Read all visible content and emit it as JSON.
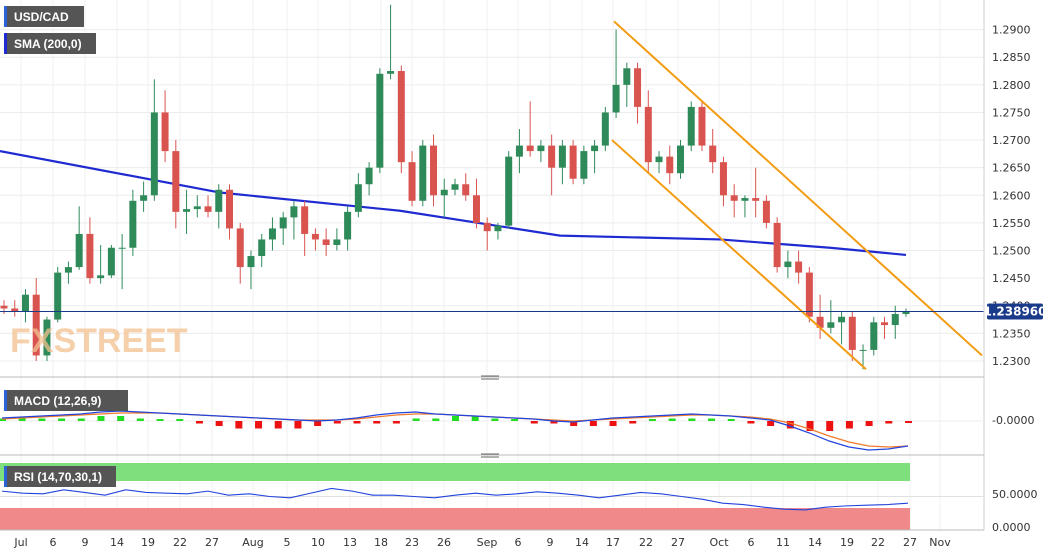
{
  "chart_data": [
    {
      "type": "candlestick",
      "symbol": "USD/CAD",
      "indicator": "SMA (200,0)",
      "watermark": "FXSTREET",
      "last_price": "1.238960",
      "last_price_value": 1.23896,
      "ylim": [
        1.228,
        1.295
      ],
      "y_ticks": [
        "1.2300",
        "1.2350",
        "1.2400",
        "1.2450",
        "1.2500",
        "1.2550",
        "1.2600",
        "1.2650",
        "1.2700",
        "1.2750",
        "1.2800",
        "1.2850",
        "1.2900"
      ],
      "x_ticks": [
        "Jul",
        "6",
        "9",
        "14",
        "19",
        "22",
        "27",
        "Aug",
        "5",
        "10",
        "13",
        "18",
        "23",
        "26",
        "Sep",
        "6",
        "9",
        "14",
        "17",
        "22",
        "27",
        "Oct",
        "6",
        "11",
        "14",
        "19",
        "22",
        "27",
        "Nov"
      ],
      "candles": [
        [
          1.24,
          1.241,
          1.2385,
          1.2395
        ],
        [
          1.2395,
          1.241,
          1.238,
          1.239
        ],
        [
          1.239,
          1.243,
          1.237,
          1.242
        ],
        [
          1.242,
          1.245,
          1.23,
          1.231
        ],
        [
          1.231,
          1.238,
          1.23,
          1.2375
        ],
        [
          1.2375,
          1.247,
          1.237,
          1.246
        ],
        [
          1.246,
          1.248,
          1.244,
          1.247
        ],
        [
          1.247,
          1.258,
          1.2465,
          1.253
        ],
        [
          1.253,
          1.256,
          1.244,
          1.245
        ],
        [
          1.245,
          1.251,
          1.244,
          1.2455
        ],
        [
          1.2455,
          1.251,
          1.245,
          1.2505
        ],
        [
          1.2505,
          1.253,
          1.243,
          1.2505
        ],
        [
          1.2505,
          1.261,
          1.249,
          1.259
        ],
        [
          1.259,
          1.2625,
          1.257,
          1.26
        ],
        [
          1.26,
          1.281,
          1.259,
          1.275
        ],
        [
          1.275,
          1.279,
          1.266,
          1.268
        ],
        [
          1.268,
          1.27,
          1.254,
          1.257
        ],
        [
          1.257,
          1.261,
          1.253,
          1.2575
        ],
        [
          1.2575,
          1.26,
          1.256,
          1.258
        ],
        [
          1.258,
          1.26,
          1.256,
          1.257
        ],
        [
          1.257,
          1.262,
          1.254,
          1.261
        ],
        [
          1.261,
          1.262,
          1.252,
          1.254
        ],
        [
          1.254,
          1.255,
          1.244,
          1.247
        ],
        [
          1.247,
          1.25,
          1.243,
          1.249
        ],
        [
          1.249,
          1.253,
          1.247,
          1.252
        ],
        [
          1.252,
          1.256,
          1.25,
          1.254
        ],
        [
          1.254,
          1.257,
          1.251,
          1.256
        ],
        [
          1.256,
          1.259,
          1.252,
          1.258
        ],
        [
          1.258,
          1.259,
          1.249,
          1.253
        ],
        [
          1.253,
          1.254,
          1.25,
          1.252
        ],
        [
          1.252,
          1.254,
          1.249,
          1.251
        ],
        [
          1.251,
          1.254,
          1.25,
          1.252
        ],
        [
          1.252,
          1.258,
          1.25,
          1.257
        ],
        [
          1.257,
          1.264,
          1.256,
          1.262
        ],
        [
          1.262,
          1.266,
          1.26,
          1.265
        ],
        [
          1.265,
          1.283,
          1.264,
          1.282
        ],
        [
          1.282,
          1.2945,
          1.281,
          1.2825
        ],
        [
          1.2825,
          1.2835,
          1.264,
          1.266
        ],
        [
          1.266,
          1.268,
          1.258,
          1.259
        ],
        [
          1.259,
          1.27,
          1.258,
          1.269
        ],
        [
          1.269,
          1.271,
          1.258,
          1.26
        ],
        [
          1.26,
          1.263,
          1.256,
          1.261
        ],
        [
          1.261,
          1.263,
          1.26,
          1.262
        ],
        [
          1.262,
          1.264,
          1.259,
          1.26
        ],
        [
          1.26,
          1.263,
          1.254,
          1.255
        ],
        [
          1.255,
          1.256,
          1.25,
          1.2535
        ],
        [
          1.2535,
          1.255,
          1.252,
          1.2545
        ],
        [
          1.2545,
          1.268,
          1.254,
          1.267
        ],
        [
          1.267,
          1.272,
          1.264,
          1.269
        ],
        [
          1.269,
          1.277,
          1.267,
          1.268
        ],
        [
          1.268,
          1.27,
          1.266,
          1.269
        ],
        [
          1.269,
          1.271,
          1.26,
          1.265
        ],
        [
          1.265,
          1.27,
          1.262,
          1.269
        ],
        [
          1.269,
          1.27,
          1.262,
          1.263
        ],
        [
          1.263,
          1.269,
          1.262,
          1.268
        ],
        [
          1.268,
          1.27,
          1.264,
          1.269
        ],
        [
          1.269,
          1.276,
          1.268,
          1.275
        ],
        [
          1.275,
          1.29,
          1.274,
          1.28
        ],
        [
          1.28,
          1.284,
          1.276,
          1.283
        ],
        [
          1.283,
          1.284,
          1.273,
          1.276
        ],
        [
          1.276,
          1.279,
          1.264,
          1.266
        ],
        [
          1.266,
          1.268,
          1.264,
          1.267
        ],
        [
          1.267,
          1.269,
          1.262,
          1.264
        ],
        [
          1.264,
          1.27,
          1.263,
          1.269
        ],
        [
          1.269,
          1.277,
          1.268,
          1.276
        ],
        [
          1.276,
          1.277,
          1.268,
          1.269
        ],
        [
          1.269,
          1.272,
          1.264,
          1.266
        ],
        [
          1.266,
          1.267,
          1.258,
          1.26
        ],
        [
          1.26,
          1.262,
          1.256,
          1.259
        ],
        [
          1.259,
          1.26,
          1.256,
          1.2595
        ],
        [
          1.2595,
          1.265,
          1.256,
          1.259
        ],
        [
          1.259,
          1.26,
          1.254,
          1.255
        ],
        [
          1.255,
          1.256,
          1.246,
          1.247
        ],
        [
          1.247,
          1.25,
          1.245,
          1.248
        ],
        [
          1.248,
          1.25,
          1.244,
          1.246
        ],
        [
          1.246,
          1.247,
          1.237,
          1.238
        ],
        [
          1.238,
          1.242,
          1.234,
          1.236
        ],
        [
          1.236,
          1.241,
          1.235,
          1.237
        ],
        [
          1.237,
          1.239,
          1.233,
          1.238
        ],
        [
          1.238,
          1.239,
          1.23,
          1.232
        ],
        [
          1.232,
          1.233,
          1.2285,
          1.232
        ],
        [
          1.232,
          1.238,
          1.231,
          1.237
        ],
        [
          1.237,
          1.238,
          1.234,
          1.2365
        ],
        [
          1.2365,
          1.24,
          1.234,
          1.2385
        ],
        [
          1.2385,
          1.2395,
          1.238,
          1.239
        ]
      ],
      "sma": [
        1.268,
        1.255,
        1.251,
        1.2495,
        1.2492
      ],
      "channel_upper": [
        [
          1.2915
        ],
        [
          1.231
        ]
      ],
      "channel_lower": [
        [
          1.27
        ],
        [
          1.2285
        ]
      ]
    },
    {
      "type": "line",
      "title": "MACD (12,26,9)",
      "y_ticks": [
        "-0.0000"
      ],
      "macd_series": [
        0.3,
        0.4,
        0.5,
        0.6,
        0.7,
        0.9,
        1.0,
        0.9,
        0.8,
        0.7,
        0.6,
        0.5,
        0.4,
        0.3,
        0.2,
        0.1,
        0.0,
        0.1,
        0.3,
        0.6,
        0.8,
        0.9,
        0.7,
        0.6,
        0.5,
        0.4,
        0.3,
        0.2,
        0.0,
        -0.1,
        0.1,
        0.3,
        0.4,
        0.5,
        0.6,
        0.7,
        0.6,
        0.5,
        0.3,
        0.1,
        -0.5,
        -1.2,
        -2.0,
        -2.6,
        -2.9,
        -2.8,
        -2.5
      ],
      "signal_series": [
        0.2,
        0.3,
        0.4,
        0.5,
        0.6,
        0.7,
        0.8,
        0.8,
        0.8,
        0.7,
        0.6,
        0.5,
        0.4,
        0.3,
        0.2,
        0.1,
        0.1,
        0.1,
        0.2,
        0.4,
        0.6,
        0.7,
        0.7,
        0.6,
        0.5,
        0.4,
        0.3,
        0.2,
        0.1,
        0.0,
        0.1,
        0.2,
        0.3,
        0.4,
        0.5,
        0.6,
        0.6,
        0.5,
        0.4,
        0.2,
        -0.2,
        -0.8,
        -1.5,
        -2.1,
        -2.5,
        -2.6,
        -2.5
      ],
      "hist_values": [
        0.1,
        0.1,
        0.1,
        0.1,
        0.1,
        0.2,
        0.2,
        0.1,
        0.0,
        0.0,
        -0.1,
        -0.2,
        -0.3,
        -0.3,
        -0.3,
        -0.3,
        -0.2,
        -0.1,
        -0.1,
        -0.1,
        -0.1,
        0.1,
        0.1,
        0.2,
        0.2,
        0.1,
        0.0,
        -0.1,
        -0.1,
        -0.2,
        -0.2,
        -0.2,
        -0.1,
        0.0,
        0.1,
        0.1,
        0.1,
        0.0,
        -0.1,
        -0.2,
        -0.3,
        -0.4,
        -0.4,
        -0.3,
        -0.2,
        -0.1,
        -0.05
      ]
    },
    {
      "type": "line",
      "title": "RSI (14,70,30,1)",
      "y_ticks": [
        "50.0000",
        "0.0000"
      ],
      "rsi_series": [
        58,
        55,
        54,
        60,
        56,
        52,
        60,
        56,
        55,
        54,
        58,
        52,
        54,
        50,
        48,
        55,
        62,
        58,
        52,
        52,
        50,
        48,
        52,
        55,
        52,
        54,
        57,
        55,
        52,
        48,
        52,
        56,
        54,
        50,
        46,
        40,
        38,
        34,
        31,
        30,
        34,
        36,
        37,
        38,
        40
      ]
    }
  ]
}
